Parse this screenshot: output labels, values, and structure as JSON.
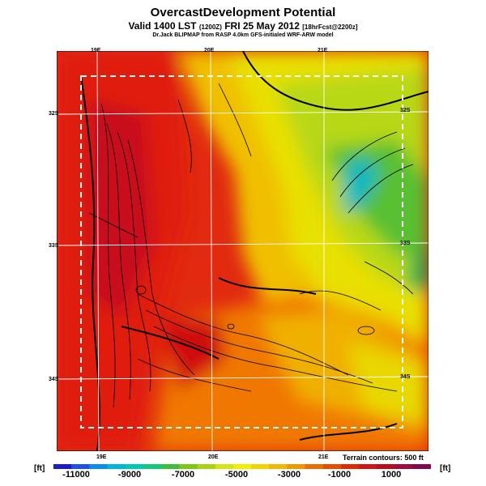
{
  "header": {
    "title": "OvercastDevelopment Potential",
    "subtitle_main": "Valid 1400 LST",
    "subtitle_utc": "(1200Z)",
    "subtitle_date": "FRI 25 May 2012",
    "subtitle_fcst": "[18hrFcst@2200z]",
    "credit": "Dr.Jack BLIPMAP from RASP 4.0km GFS-initialed WRF-ARW model"
  },
  "map": {
    "top_labels": [
      "19E",
      "20E",
      "21E"
    ],
    "bottom_labels": [
      "19E",
      "20E",
      "21E"
    ],
    "left_labels": [
      "32S",
      "33S",
      "34S"
    ],
    "right_labels": [
      "32S",
      "33S",
      "34S"
    ],
    "contour_note": "Terrain contours: 500 ft"
  },
  "colorbar": {
    "unit_left": "[ft]",
    "unit_right": "[ft]",
    "ticks": [
      "-11000",
      "-9000",
      "-7000",
      "-5000",
      "-3000",
      "-1000",
      "1000"
    ],
    "colors": [
      "#1a1ad0",
      "#2050e6",
      "#0a8cf0",
      "#00b4dc",
      "#00c8b4",
      "#14c878",
      "#3cbe3c",
      "#78c814",
      "#aad214",
      "#d2e614",
      "#f0f000",
      "#f5d200",
      "#f5b400",
      "#f09600",
      "#eb6e00",
      "#e64b00",
      "#e12800",
      "#d21414",
      "#be0a1e",
      "#a00a3c",
      "#800a50"
    ]
  }
}
